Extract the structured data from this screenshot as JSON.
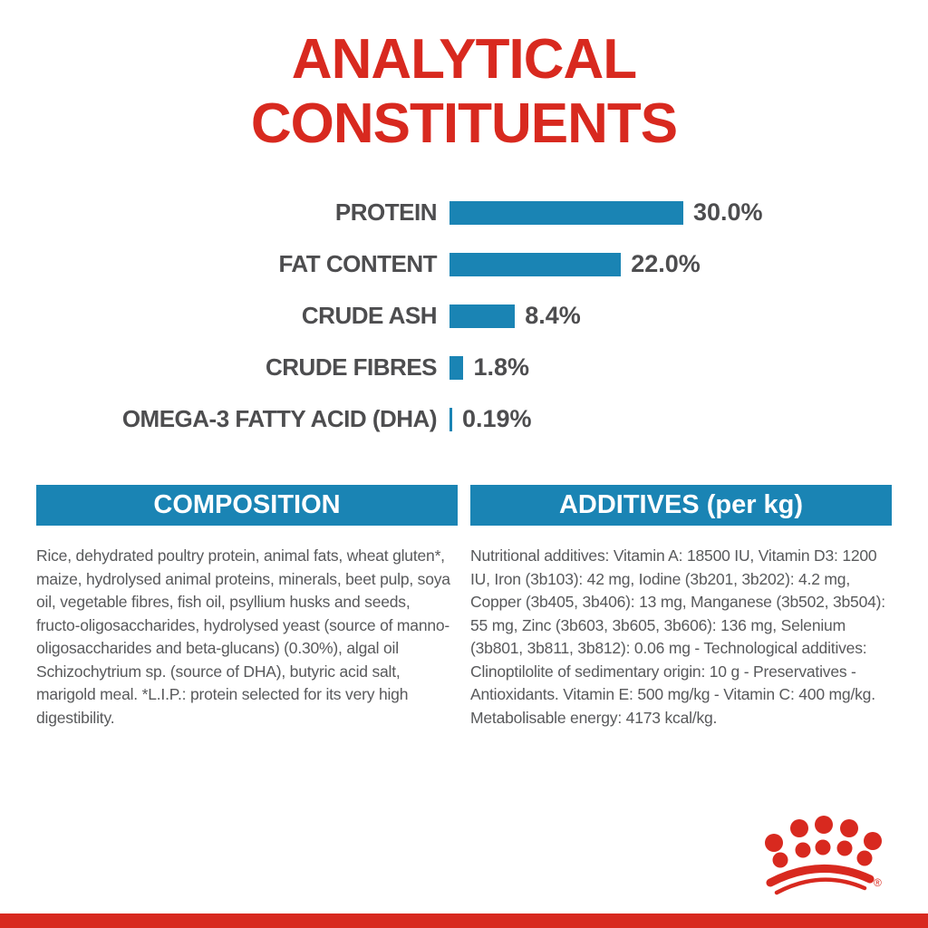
{
  "page": {
    "background": "#ffffff",
    "accent_red": "#d8291f",
    "accent_blue": "#1a84b4",
    "text_gray": "#58595b",
    "label_gray": "#4d4d4f"
  },
  "header": {
    "title_line1": "ANALYTICAL",
    "title_line2": "CONSTITUENTS"
  },
  "chart_data": {
    "type": "bar",
    "orientation": "horizontal",
    "title": "ANALYTICAL CONSTITUENTS",
    "categories": [
      "PROTEIN",
      "FAT CONTENT",
      "CRUDE ASH",
      "CRUDE FIBRES",
      "OMEGA-3 FATTY ACID (DHA)"
    ],
    "values": [
      30.0,
      22.0,
      8.4,
      1.8,
      0.19
    ],
    "value_labels": [
      "30.0%",
      "22.0%",
      "8.4%",
      "1.8%",
      "0.19%"
    ],
    "xlim": [
      0,
      30
    ],
    "grid": false,
    "legend": "none",
    "bar_color": "#1a84b4",
    "label_color": "#4d4d4f"
  },
  "composition": {
    "header": "COMPOSITION",
    "body": "Rice, dehydrated poultry protein, animal fats, wheat gluten*, maize, hydrolysed animal proteins, minerals, beet pulp, soya oil, vegetable fibres, fish oil, psyllium husks and seeds, fructo-oligosaccharides, hydrolysed yeast (source of manno-oligosaccharides and beta-glucans) (0.30%), algal oil Schizochytrium sp. (source of DHA), butyric acid salt, marigold meal. *L.I.P.: protein selected for its very high digestibility."
  },
  "additives": {
    "header": "ADDITIVES (per kg)",
    "body": "Nutritional additives: Vitamin A: 18500 IU, Vitamin D3: 1200 IU, Iron (3b103): 42 mg, Iodine (3b201, 3b202): 4.2 mg, Copper (3b405, 3b406): 13 mg, Manganese (3b502, 3b504): 55 mg, Zinc (3b603, 3b605, 3b606): 136 mg, Selenium (3b801, 3b811, 3b812): 0.06 mg - Technological additives: Clinoptilolite of sedimentary origin: 10 g - Preservatives - Antioxidants. Vitamin E: 500 mg/kg - Vitamin C: 400 mg/kg. Metabolisable energy: 4173 kcal/kg."
  },
  "footer": {
    "brand_logo": "royal-canin-crown",
    "registered_mark": "®"
  }
}
